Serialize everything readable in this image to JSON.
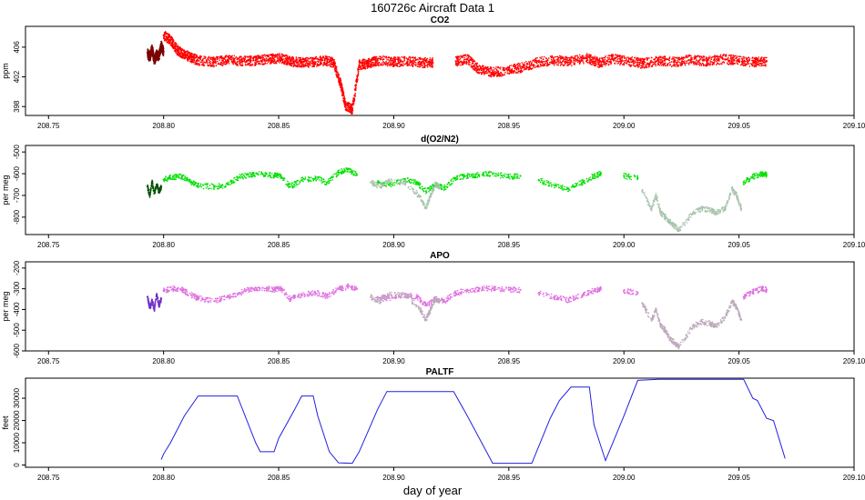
{
  "figure": {
    "title": "160726c   Aircraft Data 1",
    "xlabel": "day of year"
  },
  "chart_data": [
    {
      "type": "scatter",
      "title": "CO2",
      "ylabel": "ppm",
      "xlim": [
        208.74,
        209.1
      ],
      "ylim": [
        396.8,
        408.8
      ],
      "xticks": [
        208.75,
        208.8,
        208.85,
        208.9,
        208.95,
        209.0,
        209.05,
        209.1
      ],
      "xtick_labels": [
        "208.75",
        "208.80",
        "208.85",
        "208.90",
        "208.95",
        "209.00",
        "209.05",
        "209.10"
      ],
      "yticks": [
        398,
        402,
        406
      ],
      "ytick_labels": [
        "398",
        "402",
        "406"
      ],
      "grid": false,
      "series": [
        {
          "name": "co2-dark",
          "color": "#7a0000",
          "x": [
            208.793,
            208.794,
            208.795,
            208.796,
            208.797,
            208.798,
            208.799,
            208.8
          ],
          "y": [
            405.2,
            404.6,
            405.8,
            404.2,
            405.0,
            404.8,
            406.2,
            405.4
          ]
        },
        {
          "name": "co2-main",
          "color": "#ff0000",
          "x": [
            208.8,
            208.803,
            208.806,
            208.809,
            208.812,
            208.815,
            208.822,
            208.828,
            208.834,
            208.84,
            208.846,
            208.851,
            208.855,
            208.86,
            208.865,
            208.87,
            208.874,
            208.877,
            208.879,
            208.882,
            208.885,
            208.889,
            208.893,
            208.9,
            208.906,
            208.912,
            208.917,
            208.927,
            208.932,
            208.937,
            208.943,
            208.95,
            208.956,
            208.963,
            208.97,
            208.977,
            208.984,
            208.989,
            208.995,
            209.002,
            209.008,
            209.015,
            209.022,
            209.029,
            209.036,
            209.043,
            209.05,
            209.057,
            209.062
          ],
          "y": [
            407.6,
            407.0,
            405.6,
            405.0,
            404.6,
            404.2,
            404.0,
            404.3,
            404.1,
            404.2,
            404.4,
            404.5,
            404.1,
            403.9,
            404.0,
            404.2,
            403.9,
            401.0,
            398.2,
            397.6,
            403.6,
            403.8,
            404.2,
            404.0,
            404.1,
            403.9,
            403.9,
            404.1,
            404.4,
            403.0,
            402.6,
            402.9,
            403.3,
            404.0,
            404.2,
            404.1,
            404.5,
            403.9,
            404.4,
            404.1,
            403.8,
            404.2,
            404.0,
            404.3,
            404.1,
            404.4,
            404.2,
            404.0,
            404.1
          ]
        }
      ]
    },
    {
      "type": "scatter",
      "title": "d(O2/N2)",
      "ylabel": "per meg",
      "xlim": [
        208.74,
        209.1
      ],
      "ylim": [
        -880,
        -470
      ],
      "xticks": [
        208.75,
        208.8,
        208.85,
        208.9,
        208.95,
        209.0,
        209.05,
        209.1
      ],
      "xtick_labels": [
        "208.75",
        "208.80",
        "208.85",
        "208.90",
        "208.95",
        "209.00",
        "209.05",
        "209.10"
      ],
      "yticks": [
        -800,
        -700,
        -600,
        -500
      ],
      "ytick_labels": [
        "-800",
        "-700",
        "-600",
        "-500"
      ],
      "grid": false,
      "series": [
        {
          "name": "o2n2-dark",
          "color": "#005000",
          "x": [
            208.793,
            208.794,
            208.795,
            208.796,
            208.797,
            208.798,
            208.799
          ],
          "y": [
            -660,
            -700,
            -640,
            -690,
            -650,
            -680,
            -660
          ]
        },
        {
          "name": "o2n2-bright",
          "color": "#00e000",
          "x": [
            208.8,
            208.804,
            208.808,
            208.812,
            208.815,
            208.822,
            208.828,
            208.833,
            208.838,
            208.843,
            208.848,
            208.851,
            208.855,
            208.86,
            208.866,
            208.871,
            208.876,
            208.88,
            208.884,
            208.893,
            208.898,
            208.905,
            208.91,
            208.914,
            208.918,
            208.922,
            208.927,
            208.932,
            208.937,
            208.943,
            208.95,
            208.955,
            208.963,
            208.97,
            208.976,
            208.982,
            208.987,
            208.99,
            209.0,
            209.006,
            209.052,
            209.056,
            209.06,
            209.062
          ],
          "y": [
            -628,
            -615,
            -612,
            -640,
            -655,
            -660,
            -650,
            -615,
            -605,
            -600,
            -608,
            -610,
            -660,
            -630,
            -620,
            -640,
            -595,
            -580,
            -605,
            -640,
            -650,
            -630,
            -640,
            -680,
            -650,
            -665,
            -620,
            -610,
            -605,
            -600,
            -615,
            -610,
            -630,
            -655,
            -670,
            -640,
            -610,
            -600,
            -610,
            -620,
            -640,
            -615,
            -600,
            -605
          ]
        },
        {
          "name": "o2n2-gray",
          "color": "#a8c4ac",
          "x": [
            208.89,
            208.894,
            208.898,
            208.905,
            208.911,
            208.914,
            208.916,
            208.918,
            208.92,
            209.008,
            209.012,
            209.014,
            209.016,
            209.018,
            209.02,
            209.022,
            209.024,
            209.03,
            209.034,
            209.038,
            209.04,
            209.044,
            209.047,
            209.049,
            209.051
          ],
          "y": [
            -640,
            -660,
            -635,
            -640,
            -700,
            -760,
            -700,
            -650,
            -660,
            -680,
            -760,
            -700,
            -780,
            -800,
            -820,
            -840,
            -860,
            -780,
            -760,
            -770,
            -780,
            -760,
            -670,
            -700,
            -760
          ]
        }
      ]
    },
    {
      "type": "scatter",
      "title": "APO",
      "ylabel": "per meg",
      "xlim": [
        208.74,
        209.1
      ],
      "ylim": [
        -600,
        -170
      ],
      "xticks": [
        208.75,
        208.8,
        208.85,
        208.9,
        208.95,
        209.0,
        209.05,
        209.1
      ],
      "xtick_labels": [
        "208.75",
        "208.80",
        "208.85",
        "208.90",
        "208.95",
        "209.00",
        "209.05",
        "209.10"
      ],
      "yticks": [
        -600,
        -500,
        -400,
        -300,
        -200
      ],
      "ytick_labels": [
        "-600",
        "-500",
        "-400",
        "-300",
        "-200"
      ],
      "grid": false,
      "series": [
        {
          "name": "apo-dark",
          "color": "#7030c8",
          "x": [
            208.793,
            208.794,
            208.795,
            208.796,
            208.797,
            208.798,
            208.799
          ],
          "y": [
            -340,
            -390,
            -360,
            -400,
            -330,
            -380,
            -350
          ]
        },
        {
          "name": "apo-pink",
          "color": "#e070e0",
          "x": [
            208.8,
            208.804,
            208.808,
            208.812,
            208.815,
            208.822,
            208.828,
            208.833,
            208.838,
            208.843,
            208.848,
            208.851,
            208.855,
            208.86,
            208.866,
            208.871,
            208.876,
            208.88,
            208.884,
            208.893,
            208.898,
            208.905,
            208.91,
            208.914,
            208.918,
            208.922,
            208.927,
            208.932,
            208.937,
            208.943,
            208.95,
            208.955,
            208.963,
            208.97,
            208.976,
            208.982,
            208.987,
            208.99,
            209.0,
            209.006,
            209.052,
            209.056,
            209.06,
            209.062
          ],
          "y": [
            -310,
            -300,
            -305,
            -330,
            -345,
            -360,
            -340,
            -320,
            -300,
            -295,
            -305,
            -300,
            -350,
            -330,
            -320,
            -335,
            -300,
            -290,
            -300,
            -340,
            -345,
            -330,
            -340,
            -380,
            -350,
            -360,
            -320,
            -310,
            -300,
            -298,
            -305,
            -305,
            -320,
            -340,
            -355,
            -330,
            -310,
            -298,
            -310,
            -320,
            -340,
            -315,
            -300,
            -305
          ]
        },
        {
          "name": "apo-gray",
          "color": "#bcaabc",
          "x": [
            208.89,
            208.894,
            208.898,
            208.905,
            208.911,
            208.914,
            208.916,
            208.918,
            208.92,
            209.008,
            209.012,
            209.014,
            209.016,
            209.018,
            209.02,
            209.022,
            209.024,
            209.03,
            209.034,
            209.038,
            209.04,
            209.044,
            209.047,
            209.049,
            209.051
          ],
          "y": [
            -340,
            -360,
            -330,
            -330,
            -390,
            -450,
            -400,
            -350,
            -360,
            -370,
            -450,
            -400,
            -480,
            -500,
            -540,
            -560,
            -580,
            -480,
            -460,
            -470,
            -480,
            -440,
            -360,
            -390,
            -450
          ]
        }
      ]
    },
    {
      "type": "line",
      "title": "PALTF",
      "ylabel": "feet",
      "xlim": [
        208.74,
        209.1
      ],
      "ylim": [
        -1000,
        39000
      ],
      "xticks": [
        208.75,
        208.8,
        208.85,
        208.9,
        208.95,
        209.0,
        209.05,
        209.1
      ],
      "xtick_labels": [
        "208.75",
        "208.80",
        "208.85",
        "208.90",
        "208.95",
        "209.00",
        "209.05",
        "209.10"
      ],
      "yticks": [
        0,
        10000,
        20000,
        30000
      ],
      "ytick_labels": [
        "0",
        "10000",
        "20000",
        "30000"
      ],
      "grid": false,
      "series": [
        {
          "name": "paltf",
          "color": "#2020e0",
          "x": [
            208.799,
            208.8,
            208.803,
            208.809,
            208.815,
            208.832,
            208.84,
            208.842,
            208.848,
            208.85,
            208.857,
            208.86,
            208.865,
            208.867,
            208.872,
            208.876,
            208.882,
            208.885,
            208.893,
            208.897,
            208.92,
            208.926,
            208.932,
            208.943,
            208.952,
            208.96,
            208.968,
            208.972,
            208.977,
            208.985,
            208.987,
            208.992,
            209.0,
            209.006,
            209.015,
            209.052,
            209.056,
            209.058,
            209.062,
            209.065,
            209.07
          ],
          "y": [
            2500,
            5000,
            10000,
            22000,
            31000,
            31000,
            10000,
            6000,
            6000,
            12000,
            25000,
            31000,
            31000,
            22000,
            6000,
            1000,
            800,
            6000,
            25000,
            33000,
            33000,
            33000,
            22000,
            800,
            800,
            800,
            21000,
            29000,
            35000,
            35000,
            18000,
            2000,
            22000,
            38000,
            38500,
            38500,
            30000,
            29000,
            21000,
            20000,
            3000
          ]
        }
      ]
    }
  ]
}
